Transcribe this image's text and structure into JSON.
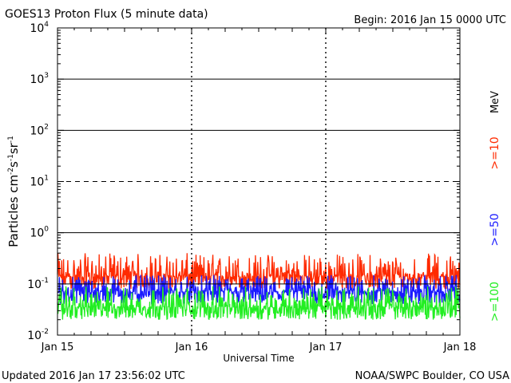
{
  "header": {
    "title": "GOES13 Proton Flux (5 minute data)",
    "begin": "Begin: 2016 Jan 15 0000 UTC"
  },
  "footer": {
    "updated": "Updated 2016 Jan 17 23:56:02 UTC",
    "credit": "NOAA/SWPC Boulder, CO USA"
  },
  "chart_data": {
    "type": "line",
    "title": "GOES13 Proton Flux (5 minute data)",
    "xlabel": "Universal Time",
    "ylabel_main": "Particles cm",
    "ylabel_sup1": "-2",
    "ylabel_mid1": "s",
    "ylabel_sup2": "-1",
    "ylabel_mid2": "sr",
    "ylabel_sup3": "-1",
    "y_scale": "log",
    "ylim": [
      0.01,
      10000
    ],
    "xlim": [
      "2016-01-15",
      "2016-01-18"
    ],
    "x_ticks": [
      "Jan 15",
      "Jan 16",
      "Jan 17",
      "Jan 18"
    ],
    "y_ticks": [
      {
        "base": "10",
        "exp": "-2"
      },
      {
        "base": "10",
        "exp": "-1"
      },
      {
        "base": "10",
        "exp": "0"
      },
      {
        "base": "10",
        "exp": "1"
      },
      {
        "base": "10",
        "exp": "2"
      },
      {
        "base": "10",
        "exp": "3"
      },
      {
        "base": "10",
        "exp": "4"
      }
    ],
    "threshold_lines": [
      {
        "value": 1,
        "style": "solid"
      },
      {
        "value": 10,
        "style": "dashed"
      },
      {
        "value": 100,
        "style": "solid"
      },
      {
        "value": 1000,
        "style": "solid"
      }
    ],
    "grid": "vertical dashed lines at day boundaries",
    "units_label": "MeV",
    "series": [
      {
        "name": ">=10",
        "color": "#ff2a00",
        "typical": 0.14,
        "range": [
          0.08,
          0.4
        ],
        "note": "noisy background, peak ~0.4 near Jan 16"
      },
      {
        "name": ">=50",
        "color": "#1a1aff",
        "typical": 0.07,
        "range": [
          0.04,
          0.15
        ]
      },
      {
        "name": ">=100",
        "color": "#22ee22",
        "typical": 0.035,
        "range": [
          0.02,
          0.09
        ]
      }
    ]
  }
}
